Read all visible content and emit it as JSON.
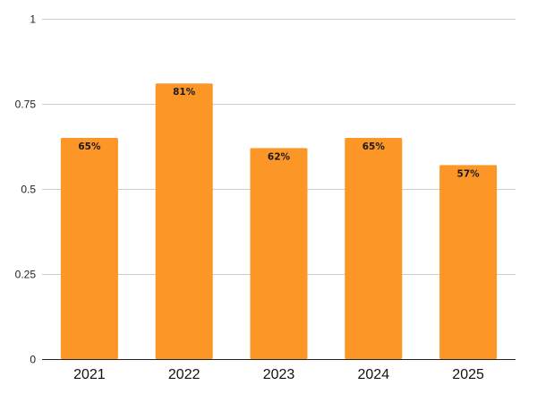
{
  "chart_data": {
    "type": "bar",
    "categories": [
      "2021",
      "2022",
      "2023",
      "2024",
      "2025"
    ],
    "values": [
      0.65,
      0.81,
      0.62,
      0.65,
      0.57
    ],
    "data_labels": [
      "65%",
      "81%",
      "62%",
      "65%",
      "57%"
    ],
    "ylim": [
      0,
      1
    ],
    "yticks": [
      0,
      0.25,
      0.5,
      0.75,
      1
    ],
    "ytick_labels": [
      "0",
      "0.25",
      "0.5",
      "0.75",
      "1"
    ],
    "title": "",
    "xlabel": "",
    "ylabel": "",
    "grid": true,
    "legend": "none",
    "colors": {
      "bar": "#fb9627",
      "grid": "#cccccc",
      "axis": "#222222"
    }
  }
}
